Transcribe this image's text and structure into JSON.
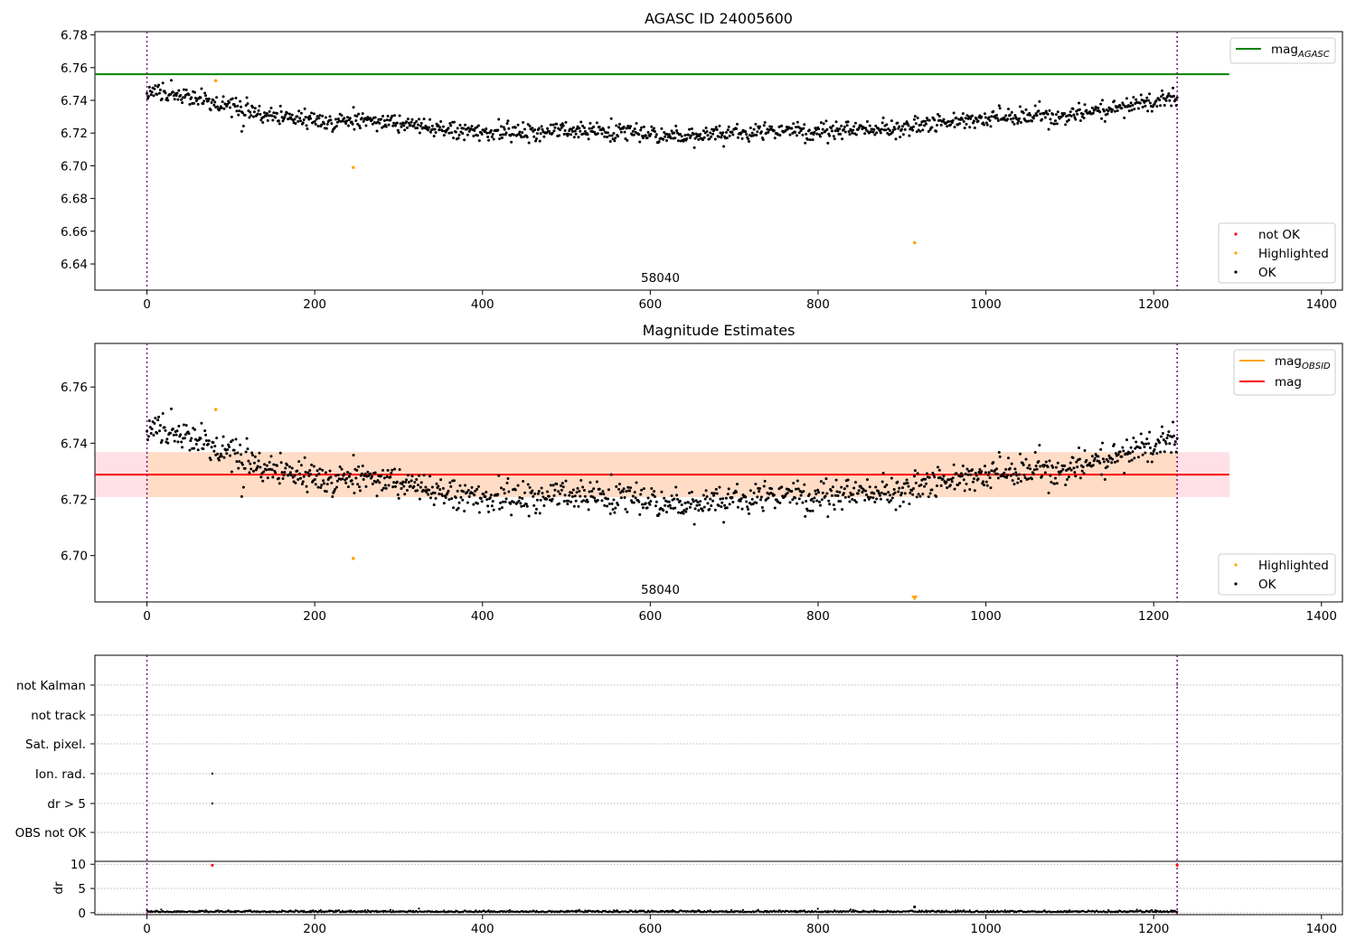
{
  "figure": {
    "background": "#ffffff"
  },
  "chart_data": [
    {
      "type": "scatter",
      "title": "AGASC ID 24005600",
      "xlim": [
        -62,
        1425
      ],
      "ylim": [
        6.624,
        6.782
      ],
      "xticks": [
        0,
        200,
        400,
        600,
        800,
        1000,
        1200,
        1400
      ],
      "yticks": [
        6.64,
        6.66,
        6.68,
        6.7,
        6.72,
        6.74,
        6.76,
        6.78
      ],
      "ytick_decimals": 2,
      "annotation": {
        "label": "58040",
        "x": 612
      },
      "vlines": [
        0,
        1228
      ],
      "hline": {
        "label": "mag_AGASC",
        "y": 6.756,
        "x_range": [
          -62,
          1290
        ],
        "color": "#008000"
      },
      "trend": {
        "x0": 0,
        "x1": 1228,
        "base": 6.7196,
        "scale": 0.0205,
        "noise": 0.0027
      },
      "highlighted": [
        {
          "x": 82,
          "y": 6.752
        },
        {
          "x": 246,
          "y": 6.699
        },
        {
          "x": 915,
          "y": 6.653
        }
      ],
      "outliers": [
        {
          "x": 113,
          "y": 6.721
        }
      ],
      "legend_lines": [
        {
          "label": "mag",
          "sub": "AGASC",
          "color": "#008000"
        }
      ],
      "legend_points": [
        {
          "label": "not OK",
          "color": "#ff0000"
        },
        {
          "label": "Highlighted",
          "color": "#ffa500"
        },
        {
          "label": "OK",
          "color": "#000000"
        }
      ],
      "legend_placement": "top-right / bottom-right"
    },
    {
      "type": "scatter",
      "title": "Magnitude Estimates",
      "xlim": [
        -62,
        1425
      ],
      "ylim": [
        6.6835,
        6.7755
      ],
      "xticks": [
        0,
        200,
        400,
        600,
        800,
        1000,
        1200,
        1400
      ],
      "yticks": [
        6.7,
        6.72,
        6.74,
        6.76
      ],
      "ytick_decimals": 2,
      "annotation": {
        "label": "58040",
        "x": 612
      },
      "vlines": [
        0,
        1228
      ],
      "band_outer": {
        "y0": 6.7208,
        "y1": 6.7368,
        "x_range": [
          -62,
          1290
        ],
        "color": "#ffe0e6"
      },
      "band_inner": {
        "y0": 6.7208,
        "y1": 6.7368,
        "x_range": [
          0,
          1228
        ],
        "color": "#ffdcc6"
      },
      "mag_line": {
        "label": "mag",
        "y": 6.7288,
        "x_range": [
          -62,
          1290
        ],
        "color": "#ff0000"
      },
      "trend": {
        "x0": 0,
        "x1": 1228,
        "base": 6.7196,
        "scale": 0.0205,
        "noise": 0.0027
      },
      "highlighted": [
        {
          "x": 82,
          "y": 6.752
        },
        {
          "x": 246,
          "y": 6.699
        }
      ],
      "outliers": [
        {
          "x": 113,
          "y": 6.721
        }
      ],
      "offscale_marker": {
        "x": 915,
        "color": "#ffa500"
      },
      "legend_lines": [
        {
          "label": "mag",
          "sub": "OBSID",
          "color": "#ffa500"
        },
        {
          "label": "mag",
          "sub": "",
          "color": "#ff0000"
        }
      ],
      "legend_points": [
        {
          "label": "Highlighted",
          "color": "#ffa500"
        },
        {
          "label": "OK",
          "color": "#000000"
        }
      ],
      "legend_placement": "top-right / bottom-right"
    },
    {
      "type": "scatter",
      "title": "",
      "xlim": [
        -62,
        1425
      ],
      "xticks": [
        0,
        200,
        400,
        600,
        800,
        1000,
        1200,
        1400
      ],
      "vlines": [
        0,
        1228
      ],
      "flag_rows": [
        "not Kalman",
        "not track",
        "Sat. pixel.",
        "Ion. rad.",
        "dr > 5",
        "OBS not OK"
      ],
      "flag_points": [
        {
          "row": "Ion. rad.",
          "x": 78
        },
        {
          "row": "dr > 5",
          "x": 78
        }
      ],
      "dr_panel": {
        "ylabel": "dr",
        "ylim": [
          -0.4,
          10.6
        ],
        "yticks": [
          0,
          5,
          10
        ],
        "points": [
          {
            "x": 78,
            "y": 9.8,
            "color": "#ff0000"
          },
          {
            "x": 1228,
            "y": 9.8,
            "color": "#ff0000"
          },
          {
            "x": 915,
            "y": 1.2,
            "color": "#000000"
          }
        ],
        "baseline_y": 0.1
      }
    }
  ]
}
